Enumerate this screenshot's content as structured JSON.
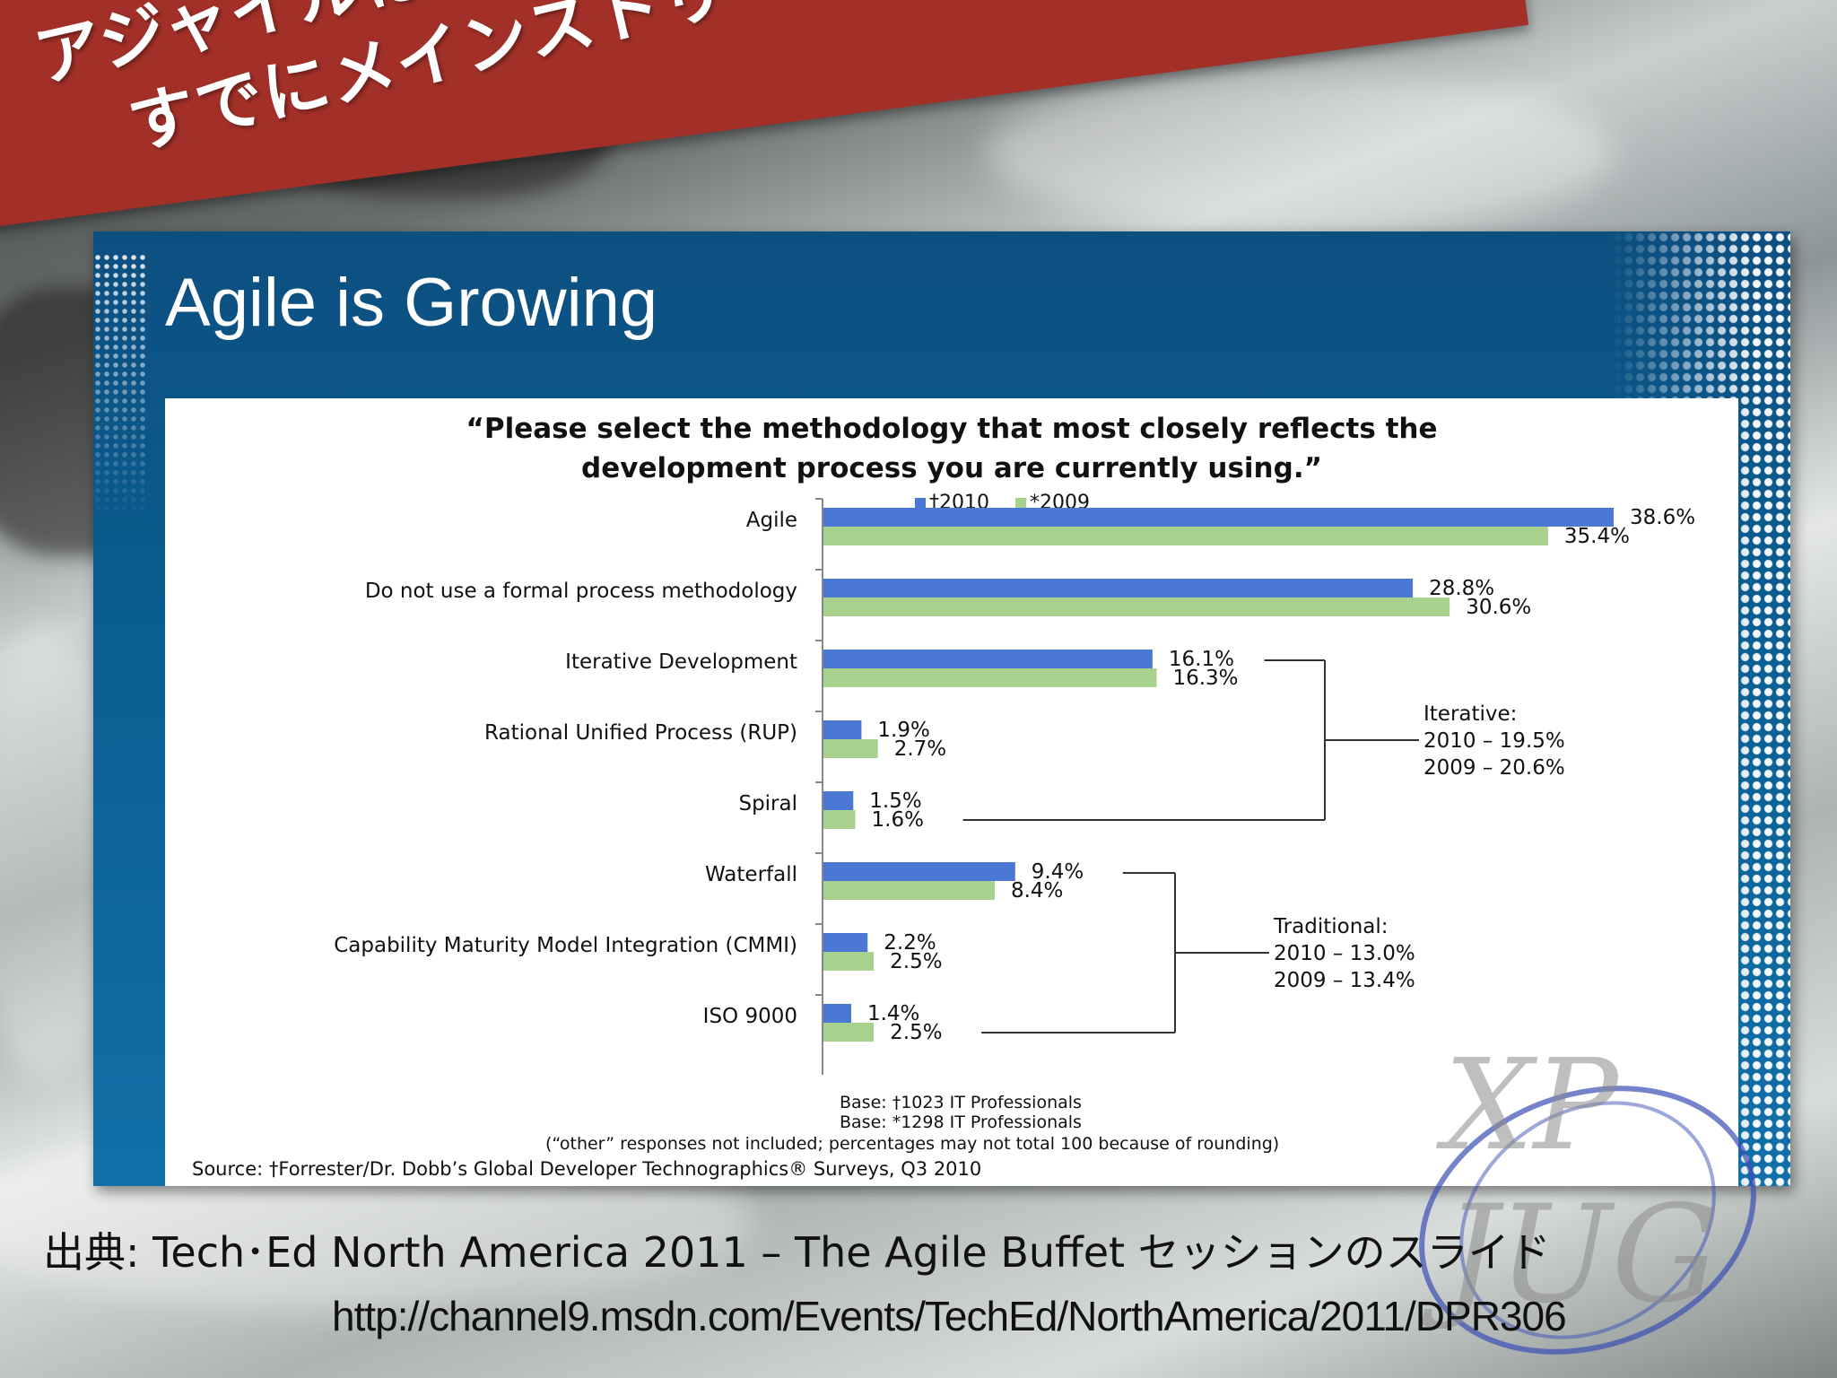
{
  "heading": {
    "line1": "アジャイルは",
    "line2": "すでにメインストリーム"
  },
  "slide": {
    "title": "Agile is Growing"
  },
  "chart_data": {
    "type": "bar",
    "orientation": "horizontal",
    "title": "“Please select the methodology that most closely reflects the development process you are currently using.”",
    "title_lines": [
      "“Please select the methodology that most closely reflects the",
      "development process you are currently using.”"
    ],
    "categories": [
      "Agile",
      "Do not use a formal process methodology",
      "Iterative Development",
      "Rational Unified Process (RUP)",
      "Spiral",
      "Waterfall",
      "Capability Maturity Model Integration (CMMI)",
      "ISO 9000"
    ],
    "series": [
      {
        "name": "†2010",
        "color": "#4a78d4",
        "values": [
          38.6,
          28.8,
          16.1,
          1.9,
          1.5,
          9.4,
          2.2,
          1.4
        ],
        "labels": [
          "38.6%",
          "28.8%",
          "16.1%",
          "1.9%",
          "1.5%",
          "9.4%",
          "2.2%",
          "1.4%"
        ]
      },
      {
        "name": "*2009",
        "color": "#a9d18e",
        "values": [
          35.4,
          30.6,
          16.3,
          2.7,
          1.6,
          8.4,
          2.5,
          2.5
        ],
        "labels": [
          "35.4%",
          "30.6%",
          "16.3%",
          "2.7%",
          "1.6%",
          "8.4%",
          "2.5%",
          "2.5%"
        ]
      }
    ],
    "xlim": [
      0,
      40
    ],
    "legend_position": "top",
    "groups": [
      {
        "from": 2,
        "to": 4,
        "lines": [
          "Iterative:",
          "2010 – 19.5%",
          "2009 – 20.6%"
        ]
      },
      {
        "from": 5,
        "to": 7,
        "lines": [
          "Traditional:",
          "2010 – 13.0%",
          "2009 – 13.4%"
        ]
      }
    ],
    "notes": [
      "Base: †1023 IT Professionals",
      "Base:  *1298 IT Professionals",
      "(“other” responses not included; percentages may not total 100 because of rounding)"
    ],
    "source": "Source: †Forrester/Dr. Dobb’s Global Developer Technographics® Surveys, Q3 2010"
  },
  "footer": {
    "source": "出典: Tech･Ed North America 2011 – The Agile Buffet セッションのスライド",
    "url": "http://channel9.msdn.com/Events/TechEd/NorthAmerica/2011/DPR306"
  },
  "watermark": {
    "line1": "XP",
    "line2": "JUG"
  },
  "colors": {
    "ribbon": "#a23029",
    "slide_blue": "#0a5d90",
    "bar_2010": "#4a78d4",
    "bar_2009": "#a9d18e"
  }
}
